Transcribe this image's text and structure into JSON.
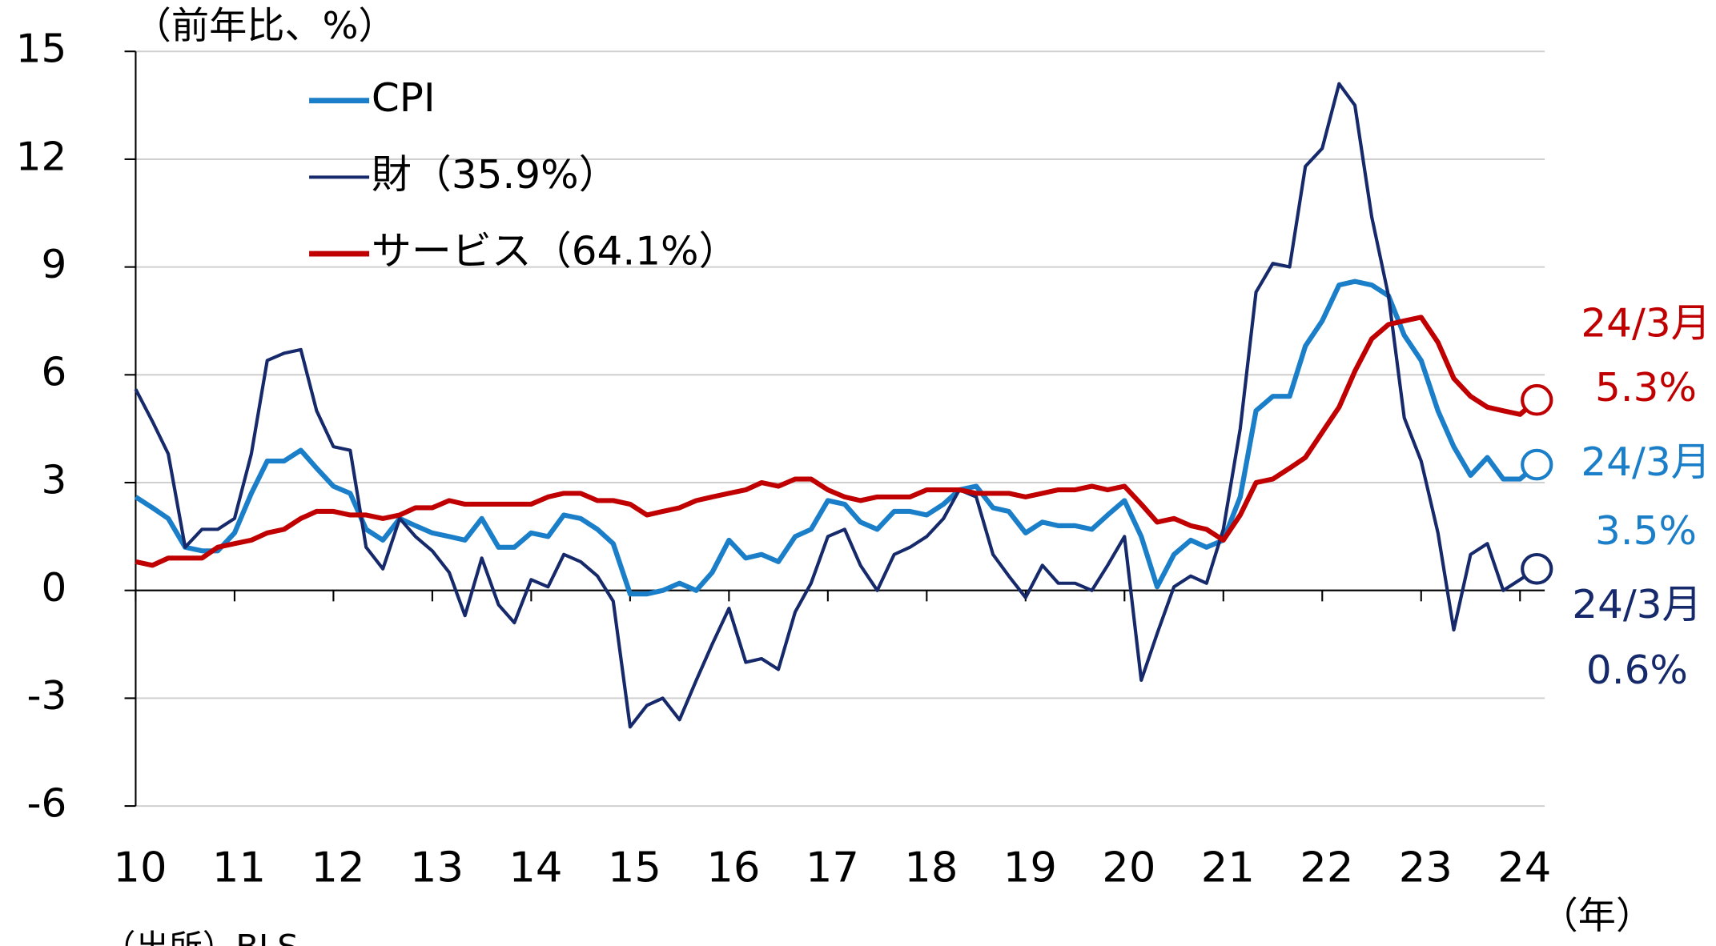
{
  "chart_data": {
    "type": "line",
    "y_label": "（前年比、%）",
    "x_unit": "（年）",
    "source": "（出所）BLS",
    "x": [
      10,
      10.17,
      10.33,
      10.5,
      10.67,
      10.83,
      11,
      11.17,
      11.33,
      11.5,
      11.67,
      11.83,
      12,
      12.17,
      12.33,
      12.5,
      12.67,
      12.83,
      13,
      13.17,
      13.33,
      13.5,
      13.67,
      13.83,
      14,
      14.17,
      14.33,
      14.5,
      14.67,
      14.83,
      15,
      15.17,
      15.33,
      15.5,
      15.67,
      15.83,
      16,
      16.17,
      16.33,
      16.5,
      16.67,
      16.83,
      17,
      17.17,
      17.33,
      17.5,
      17.67,
      17.83,
      18,
      18.17,
      18.33,
      18.5,
      18.67,
      18.83,
      19,
      19.17,
      19.33,
      19.5,
      19.67,
      19.83,
      20,
      20.17,
      20.33,
      20.5,
      20.67,
      20.83,
      21,
      21.17,
      21.33,
      21.5,
      21.67,
      21.83,
      22,
      22.17,
      22.33,
      22.5,
      22.67,
      22.83,
      23,
      23.17,
      23.33,
      23.5,
      23.67,
      23.83,
      24,
      24.17
    ],
    "series": [
      {
        "name": "CPI",
        "color": "#1a7fc8",
        "end_date": "24/3月",
        "end_label": "3.5%",
        "values": [
          2.6,
          2.3,
          2.0,
          1.2,
          1.1,
          1.1,
          1.6,
          2.7,
          3.6,
          3.6,
          3.9,
          3.4,
          2.9,
          2.7,
          1.7,
          1.4,
          2.0,
          1.8,
          1.6,
          1.5,
          1.4,
          2.0,
          1.2,
          1.2,
          1.6,
          1.5,
          2.1,
          2.0,
          1.7,
          1.3,
          -0.1,
          -0.1,
          0.0,
          0.2,
          0.0,
          0.5,
          1.4,
          0.9,
          1.0,
          0.8,
          1.5,
          1.7,
          2.5,
          2.4,
          1.9,
          1.7,
          2.2,
          2.2,
          2.1,
          2.4,
          2.8,
          2.9,
          2.3,
          2.2,
          1.6,
          1.9,
          1.8,
          1.8,
          1.7,
          2.1,
          2.5,
          1.5,
          0.1,
          1.0,
          1.4,
          1.2,
          1.4,
          2.6,
          5.0,
          5.4,
          5.4,
          6.8,
          7.5,
          8.5,
          8.6,
          8.5,
          8.2,
          7.1,
          6.4,
          5.0,
          4.0,
          3.2,
          3.7,
          3.1,
          3.1,
          3.5
        ]
      },
      {
        "name": "財（35.9%）",
        "color": "#15296b",
        "end_date": "24/3月",
        "end_label": "0.6%",
        "values": [
          5.6,
          4.7,
          3.8,
          1.2,
          1.7,
          1.7,
          2.0,
          3.8,
          6.4,
          6.6,
          6.7,
          5.0,
          4.0,
          3.9,
          1.2,
          0.6,
          2.0,
          1.5,
          1.1,
          0.5,
          -0.7,
          0.9,
          -0.4,
          -0.9,
          0.3,
          0.1,
          1.0,
          0.8,
          0.4,
          -0.3,
          -3.8,
          -3.2,
          -3.0,
          -3.6,
          -2.5,
          -1.5,
          -0.5,
          -2.0,
          -1.9,
          -2.2,
          -0.6,
          0.2,
          1.5,
          1.7,
          0.7,
          0.0,
          1.0,
          1.2,
          1.5,
          2.0,
          2.8,
          2.6,
          1.0,
          0.4,
          -0.2,
          0.7,
          0.2,
          0.2,
          0.0,
          0.7,
          1.5,
          -2.5,
          -1.2,
          0.1,
          0.4,
          0.2,
          1.7,
          4.5,
          8.3,
          9.1,
          9.0,
          11.8,
          12.3,
          14.1,
          13.5,
          10.4,
          8.2,
          4.8,
          3.6,
          1.6,
          -1.1,
          1.0,
          1.3,
          0.0,
          0.3,
          0.6
        ]
      },
      {
        "name": "サービス（64.1%）",
        "color": "#c00000",
        "end_date": "24/3月",
        "end_label": "5.3%",
        "values": [
          0.8,
          0.7,
          0.9,
          0.9,
          0.9,
          1.2,
          1.3,
          1.4,
          1.6,
          1.7,
          2.0,
          2.2,
          2.2,
          2.1,
          2.1,
          2.0,
          2.1,
          2.3,
          2.3,
          2.5,
          2.4,
          2.4,
          2.4,
          2.4,
          2.4,
          2.6,
          2.7,
          2.7,
          2.5,
          2.5,
          2.4,
          2.1,
          2.2,
          2.3,
          2.5,
          2.6,
          2.7,
          2.8,
          3.0,
          2.9,
          3.1,
          3.1,
          2.8,
          2.6,
          2.5,
          2.6,
          2.6,
          2.6,
          2.8,
          2.8,
          2.8,
          2.7,
          2.7,
          2.7,
          2.6,
          2.7,
          2.8,
          2.8,
          2.9,
          2.8,
          2.9,
          2.4,
          1.9,
          2.0,
          1.8,
          1.7,
          1.4,
          2.1,
          3.0,
          3.1,
          3.4,
          3.7,
          4.4,
          5.1,
          6.1,
          7.0,
          7.4,
          7.5,
          7.6,
          6.9,
          5.9,
          5.4,
          5.1,
          5.0,
          4.9,
          5.3
        ]
      }
    ],
    "xlim": [
      10,
      24.25
    ],
    "xticks": [
      10,
      11,
      12,
      13,
      14,
      15,
      16,
      17,
      18,
      19,
      20,
      21,
      22,
      23,
      24
    ],
    "ylim": [
      -6,
      15
    ],
    "yticks": [
      15,
      12,
      9,
      6,
      3,
      0,
      -3,
      -6
    ],
    "grid": true,
    "legend": "upper left"
  }
}
